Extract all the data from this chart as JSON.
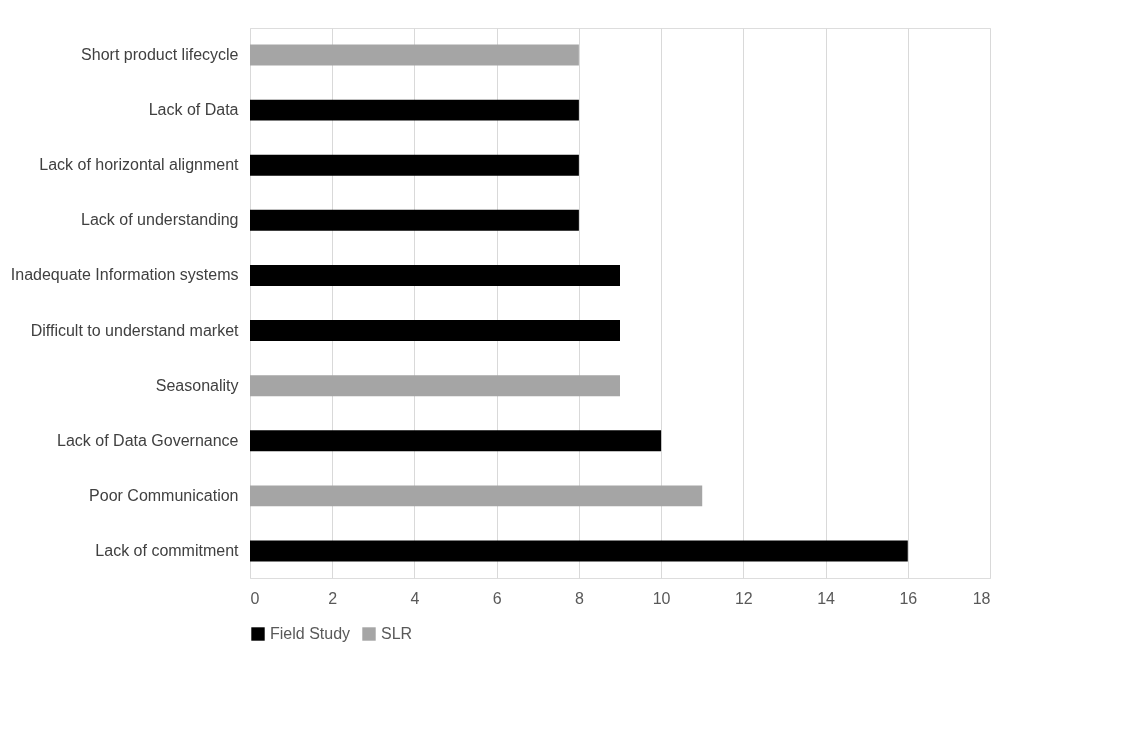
{
  "chart_data": {
    "type": "bar",
    "orientation": "horizontal",
    "categories": [
      "Short product lifecycle",
      "Lack of Data",
      "Lack of horizontal alignment",
      "Lack of understanding",
      "Inadequate Information systems",
      "Difficult to understand market",
      "Seasonality",
      "Lack of Data Governance",
      "Poor Communication",
      "Lack of commitment"
    ],
    "series": [
      {
        "name": "Field Study",
        "color": "#000000",
        "values": [
          null,
          8,
          8,
          8,
          9,
          9,
          null,
          10,
          null,
          16
        ]
      },
      {
        "name": "SLR",
        "color": "#a5a5a5",
        "values": [
          8,
          null,
          null,
          null,
          null,
          null,
          9,
          null,
          11,
          null
        ]
      }
    ],
    "xlim": [
      0,
      18
    ],
    "xticks": [
      0,
      2,
      4,
      6,
      8,
      10,
      12,
      14,
      16,
      18
    ],
    "grid": "x",
    "legend": "bottom"
  }
}
